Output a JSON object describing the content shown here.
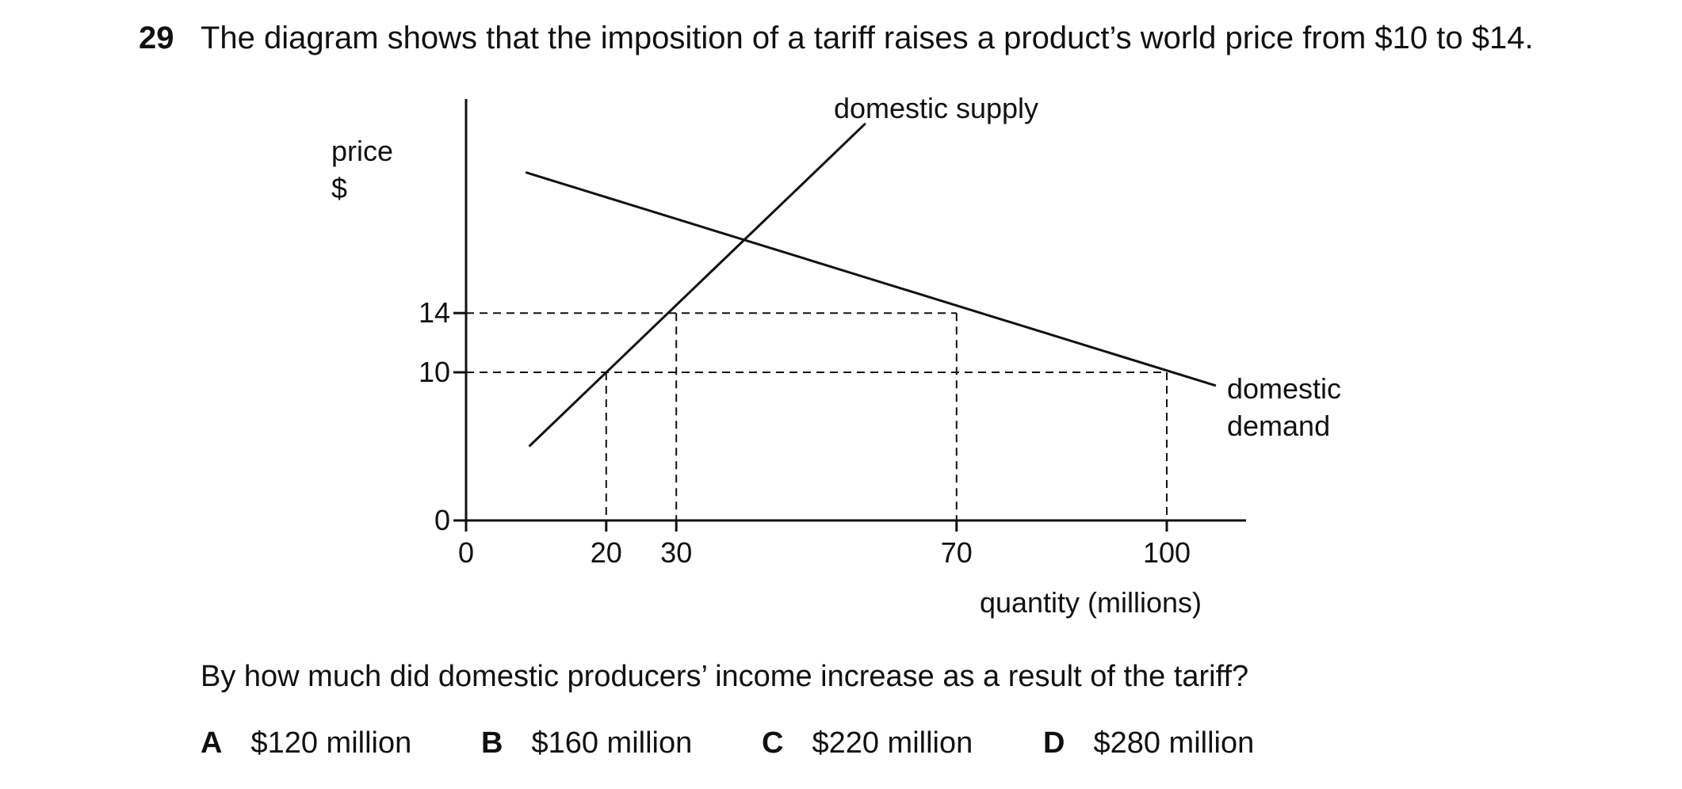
{
  "question": {
    "number": "29",
    "stem": "The diagram shows that the imposition of a tariff raises a product’s world price from $10 to $14.",
    "ask": "By how much did domestic producers’ income increase as a result of the tariff?",
    "options": [
      {
        "letter": "A",
        "text": "$120 million"
      },
      {
        "letter": "B",
        "text": "$160 million"
      },
      {
        "letter": "C",
        "text": "$220 million"
      },
      {
        "letter": "D",
        "text": "$280 million"
      }
    ]
  },
  "chart_data": {
    "type": "line",
    "ylabel_lines": [
      "price",
      "$"
    ],
    "xlabel": "quantity (millions)",
    "x_ticks": [
      0,
      20,
      30,
      70,
      100
    ],
    "y_ticks": [
      0,
      10,
      14
    ],
    "xlim": [
      0,
      110
    ],
    "ylim": [
      0,
      28
    ],
    "series": [
      {
        "name": "domestic supply",
        "points": [
          [
            9,
            5
          ],
          [
            57,
            26.8
          ]
        ]
      },
      {
        "name": "domestic demand",
        "label_lines": [
          "domestic",
          "demand"
        ],
        "points": [
          [
            8.5,
            23.5
          ],
          [
            107,
            9.1
          ]
        ]
      }
    ],
    "reference_lines": [
      {
        "price": 14,
        "quantities": [
          30,
          70
        ]
      },
      {
        "price": 10,
        "quantities": [
          20,
          100
        ]
      }
    ],
    "color": "#111111"
  }
}
